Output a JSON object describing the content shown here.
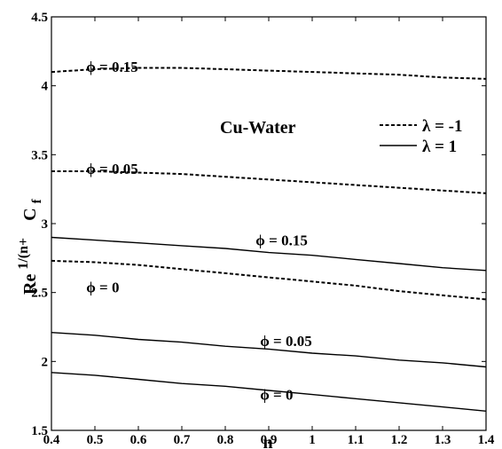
{
  "chart_data": {
    "type": "line",
    "title": "",
    "xlabel": "n",
    "ylabel": "Re^{1/(n+1)} C_f",
    "ylabel_base": "Re",
    "ylabel_exp": "1/(n+",
    "ylabel_cf": "C",
    "ylabel_sub": "f",
    "xlim": [
      0.4,
      1.4
    ],
    "ylim": [
      1.5,
      4.5
    ],
    "grid": false,
    "legend_placement": "top-right",
    "xticks": [
      "0.4",
      "0.5",
      "0.6",
      "0.7",
      "0.8",
      "0.9",
      "1",
      "1.1",
      "1.2",
      "1.3",
      "1.4"
    ],
    "yticks": [
      "1.5",
      "2",
      "2.5",
      "3",
      "3.5",
      "4",
      "4.5"
    ],
    "legend": [
      {
        "label": "λ = -1",
        "style": "dashed"
      },
      {
        "label": "λ = 1",
        "style": "solid"
      }
    ],
    "annotation": "Cu-Water",
    "series": [
      {
        "name": "ϕ = 0.15",
        "style": "dashed",
        "x": [
          0.4,
          0.5,
          0.6,
          0.7,
          0.8,
          0.9,
          1.0,
          1.1,
          1.2,
          1.3,
          1.4
        ],
        "y": [
          4.1,
          4.12,
          4.13,
          4.13,
          4.12,
          4.11,
          4.1,
          4.09,
          4.08,
          4.06,
          4.05
        ]
      },
      {
        "name": "ϕ = 0.05",
        "style": "dashed",
        "x": [
          0.4,
          0.5,
          0.6,
          0.7,
          0.8,
          0.9,
          1.0,
          1.1,
          1.2,
          1.3,
          1.4
        ],
        "y": [
          3.38,
          3.38,
          3.37,
          3.36,
          3.34,
          3.32,
          3.3,
          3.28,
          3.26,
          3.24,
          3.22
        ]
      },
      {
        "name": "ϕ = 0",
        "style": "dashed",
        "x": [
          0.4,
          0.5,
          0.6,
          0.7,
          0.8,
          0.9,
          1.0,
          1.1,
          1.2,
          1.3,
          1.4
        ],
        "y": [
          2.73,
          2.72,
          2.7,
          2.67,
          2.64,
          2.61,
          2.58,
          2.55,
          2.51,
          2.48,
          2.45
        ]
      },
      {
        "name": "ϕ = 0.15",
        "style": "solid",
        "x": [
          0.4,
          0.5,
          0.6,
          0.7,
          0.8,
          0.9,
          1.0,
          1.1,
          1.2,
          1.3,
          1.4
        ],
        "y": [
          2.9,
          2.88,
          2.86,
          2.84,
          2.82,
          2.79,
          2.77,
          2.74,
          2.71,
          2.68,
          2.66
        ]
      },
      {
        "name": "ϕ = 0.05",
        "style": "solid",
        "x": [
          0.4,
          0.5,
          0.6,
          0.7,
          0.8,
          0.9,
          1.0,
          1.1,
          1.2,
          1.3,
          1.4
        ],
        "y": [
          2.21,
          2.19,
          2.16,
          2.14,
          2.11,
          2.09,
          2.06,
          2.04,
          2.01,
          1.99,
          1.96
        ]
      },
      {
        "name": "ϕ = 0",
        "style": "solid",
        "x": [
          0.4,
          0.5,
          0.6,
          0.7,
          0.8,
          0.9,
          1.0,
          1.1,
          1.2,
          1.3,
          1.4
        ],
        "y": [
          1.92,
          1.9,
          1.87,
          1.84,
          1.82,
          1.79,
          1.76,
          1.73,
          1.7,
          1.67,
          1.64
        ]
      }
    ],
    "curve_labels": [
      {
        "text": "ϕ = 0.15",
        "x": 0.48,
        "y": 4.14
      },
      {
        "text": "ϕ = 0.05",
        "x": 0.48,
        "y": 3.4
      },
      {
        "text": "ϕ = 0.15",
        "x": 0.87,
        "y": 2.88
      },
      {
        "text": "ϕ = 0",
        "x": 0.48,
        "y": 2.54
      },
      {
        "text": "ϕ = 0.05",
        "x": 0.88,
        "y": 2.15
      },
      {
        "text": "ϕ = 0",
        "x": 0.88,
        "y": 1.76
      }
    ]
  }
}
